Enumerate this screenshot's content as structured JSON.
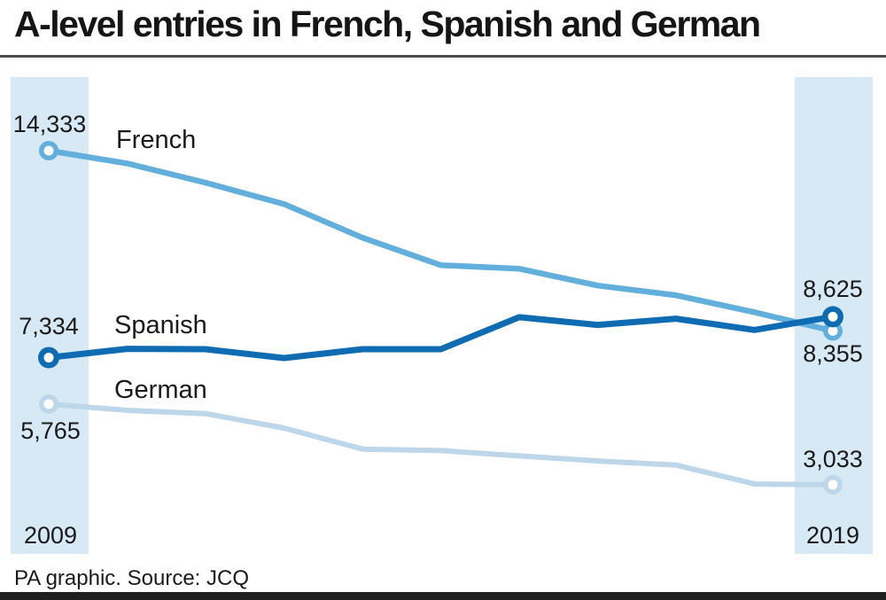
{
  "title": "A-level entries in French, Spanish and German",
  "footer": {
    "text": "PA graphic. Source: JCQ"
  },
  "colors": {
    "french_line": "#62aedd",
    "spanish_line": "#0f6cb2",
    "german_line": "#bdd6e9",
    "band": "#d7e9f5",
    "text": "#1a1a1a",
    "title_rule": "#4d4d4d",
    "bottom_bar": "#1f1f1f",
    "marker_center": "#ffffff"
  },
  "chart_data": {
    "type": "line",
    "x": [
      2009,
      2010,
      2011,
      2012,
      2013,
      2014,
      2015,
      2016,
      2017,
      2018,
      2019
    ],
    "x_start_label": "2009",
    "x_end_label": "2019",
    "grid": false,
    "legend_position": "inline-labels-on-chart",
    "ylim": [
      2500,
      15000
    ],
    "series": [
      {
        "name": "French",
        "color": "#62aedd",
        "values": [
          14333,
          13900,
          13250,
          12530,
          11390,
          10460,
          10340,
          9770,
          9440,
          8870,
          8355
        ],
        "start_label": "14,333",
        "end_label": "8,355"
      },
      {
        "name": "Spanish",
        "color": "#0f6cb2",
        "values": [
          7334,
          7630,
          7620,
          7320,
          7620,
          7620,
          8700,
          8440,
          8650,
          8270,
          8625
        ],
        "start_label": "7,334",
        "end_label": "8,625"
      },
      {
        "name": "German",
        "color": "#bdd6e9",
        "values": [
          5765,
          5550,
          5440,
          4950,
          4240,
          4190,
          4010,
          3840,
          3700,
          3060,
          3033
        ],
        "start_label": "5,765",
        "end_label": "3,033"
      }
    ]
  }
}
